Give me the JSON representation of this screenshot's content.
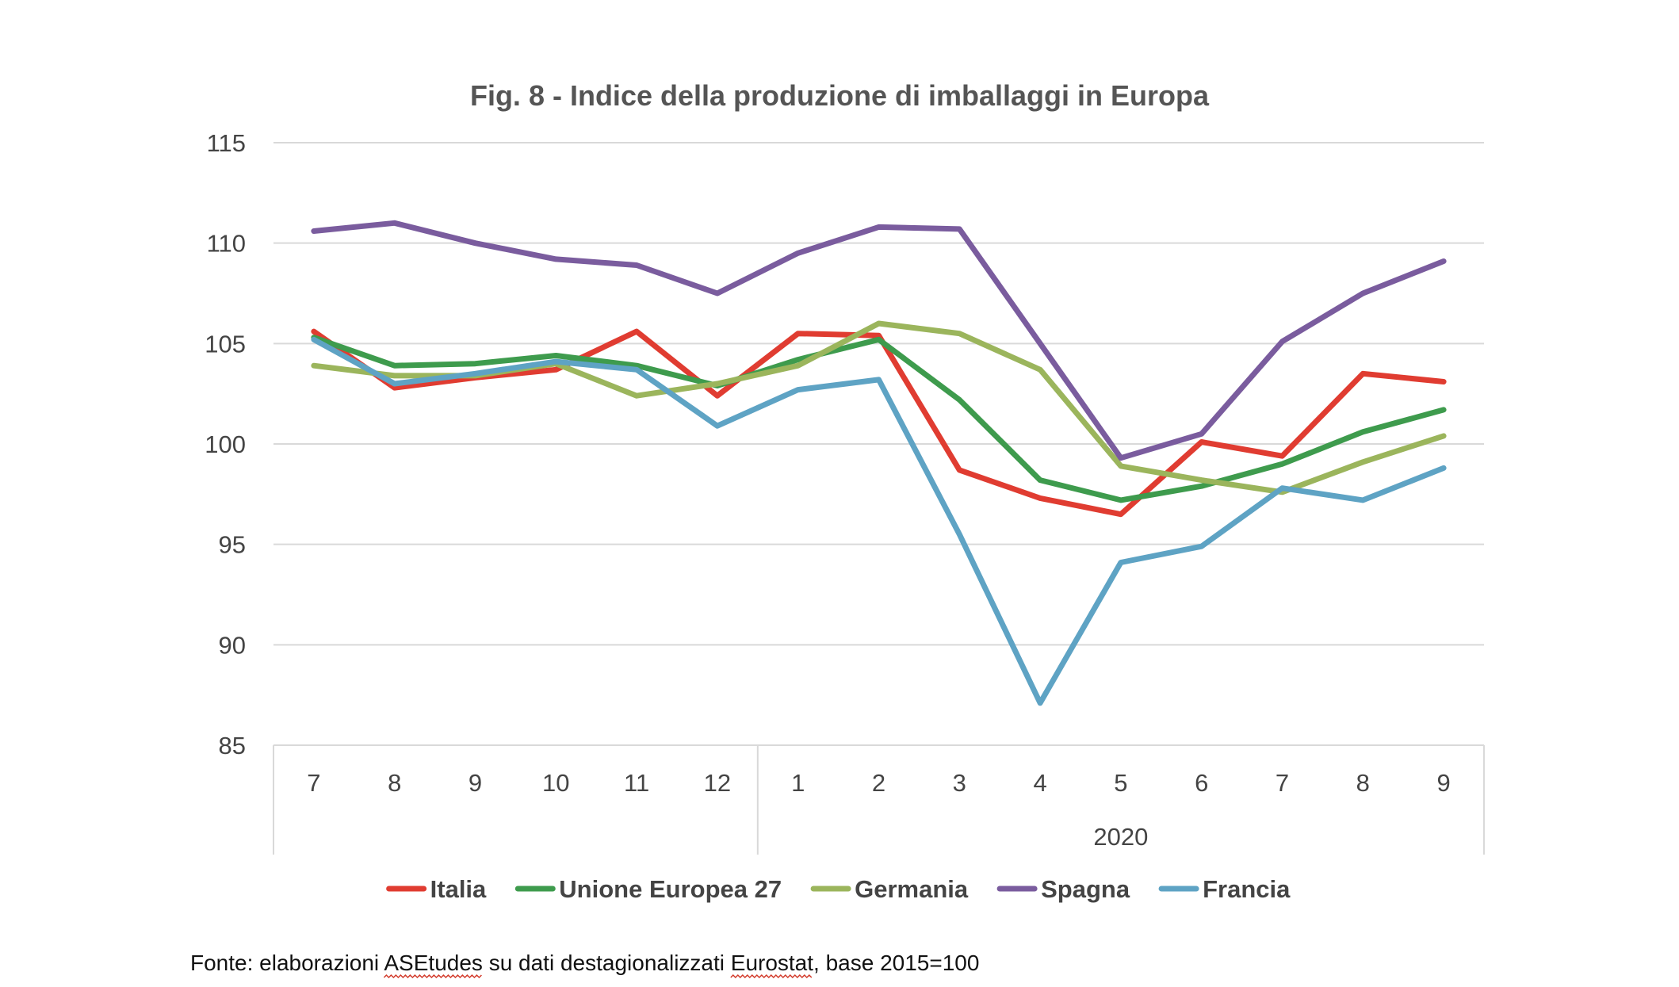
{
  "chart_data": {
    "type": "line",
    "title": "Fig. 8 - Indice della produzione di imballaggi in Europa",
    "categories": [
      "7",
      "8",
      "9",
      "10",
      "11",
      "12",
      "1",
      "2",
      "3",
      "4",
      "5",
      "6",
      "7",
      "8",
      "9"
    ],
    "category_groups": [
      {
        "label": "",
        "from": 0,
        "to": 5
      },
      {
        "label": "2020",
        "from": 6,
        "to": 14
      }
    ],
    "ylim": [
      85,
      115
    ],
    "yticks": [
      "85",
      "90",
      "95",
      "100",
      "105",
      "110",
      "115"
    ],
    "grid": true,
    "legend_position": "bottom",
    "series": [
      {
        "name": "Italia",
        "color": "#e03c31",
        "values": [
          105.6,
          102.8,
          103.3,
          103.7,
          105.6,
          102.4,
          105.5,
          105.4,
          98.7,
          97.3,
          96.5,
          100.1,
          99.4,
          103.5,
          103.1
        ]
      },
      {
        "name": "Unione Europea 27",
        "color": "#3e9b4d",
        "values": [
          105.3,
          103.9,
          104.0,
          104.4,
          103.9,
          102.9,
          104.2,
          105.2,
          102.2,
          98.2,
          97.2,
          97.9,
          99.0,
          100.6,
          101.7
        ]
      },
      {
        "name": "Germania",
        "color": "#9bb55c",
        "values": [
          103.9,
          103.4,
          103.4,
          104.0,
          102.4,
          103.0,
          103.9,
          106.0,
          105.5,
          103.7,
          98.9,
          98.2,
          97.6,
          99.1,
          100.4
        ]
      },
      {
        "name": "Spagna",
        "color": "#7a5c9e",
        "values": [
          110.6,
          111.0,
          110.0,
          109.2,
          108.9,
          107.5,
          109.5,
          110.8,
          110.7,
          105.0,
          99.3,
          100.5,
          105.1,
          107.5,
          109.1
        ]
      },
      {
        "name": "Francia",
        "color": "#5ea3c4",
        "values": [
          105.2,
          103.0,
          103.5,
          104.1,
          103.7,
          100.9,
          102.7,
          103.2,
          95.5,
          87.1,
          94.1,
          94.9,
          97.8,
          97.2,
          98.8
        ]
      }
    ]
  },
  "source_note": "Fonte: elaborazioni ASEtudes su dati destagionalizzati Eurostat, base 2015=100"
}
